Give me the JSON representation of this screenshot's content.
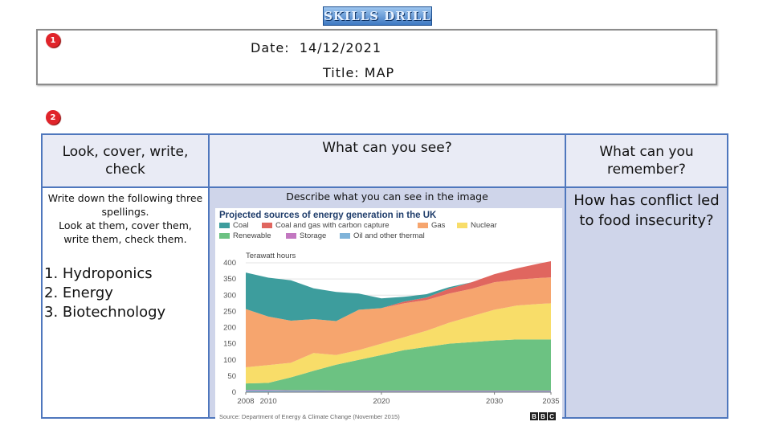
{
  "header": {
    "logo_text": "SKILLS DRILL",
    "badge_1": "1",
    "badge_2": "2",
    "date_label": "Date:",
    "date_value": "14/12/2021",
    "title_label": "Title:",
    "title_value": "MAP"
  },
  "columns": {
    "col1_header": "Look, cover, write, check",
    "col2_header": "What can you see?",
    "col3_header": "What can you remember?"
  },
  "spelling": {
    "instruction_line1": "Write down the following three spellings.",
    "instruction_line2": "Look at them, cover them, write them, check them.",
    "words": [
      "1.  Hydroponics",
      "2.  Energy",
      "3.   Biotechnology"
    ]
  },
  "describe_prompt": "Describe what you can see in the image",
  "question": "How has conflict led to food insecurity?",
  "colors": {
    "border": "#4f77bd",
    "header_bg": "#e9ebf5",
    "body_bg": "#cfd5ea",
    "badge": "#e0242a"
  },
  "chart_data": {
    "type": "area",
    "title": "Projected sources of energy generation in the UK",
    "ylabel": "Terawatt hours",
    "source": "Source: Department of Energy & Climate Change (November 2015)",
    "footer_logo": "BBC",
    "x": [
      2008,
      2010,
      2012,
      2014,
      2016,
      2018,
      2020,
      2022,
      2024,
      2026,
      2028,
      2030,
      2032,
      2034,
      2035
    ],
    "xticks": [
      "2008",
      "2010",
      "2020",
      "2030",
      "2035"
    ],
    "xtick_values": [
      2008,
      2010,
      2020,
      2030,
      2035
    ],
    "yticks": [
      0,
      50,
      100,
      150,
      200,
      250,
      300,
      350,
      400
    ],
    "ylim": [
      0,
      400
    ],
    "legend": [
      "Coal",
      "Coal and gas with carbon capture",
      "Gas",
      "Nuclear",
      "Renewable",
      "Storage",
      "Oil and other thermal"
    ],
    "series": [
      {
        "name": "Oil and other thermal",
        "color": "#7fb3d9",
        "values": [
          5,
          5,
          4,
          4,
          3,
          3,
          3,
          3,
          3,
          3,
          3,
          3,
          3,
          3,
          3
        ]
      },
      {
        "name": "Storage",
        "color": "#c277c0",
        "values": [
          2,
          2,
          2,
          2,
          2,
          2,
          2,
          2,
          2,
          2,
          2,
          2,
          2,
          2,
          2
        ]
      },
      {
        "name": "Renewable",
        "color": "#6cc282",
        "values": [
          20,
          22,
          40,
          60,
          80,
          95,
          110,
          125,
          135,
          145,
          150,
          155,
          158,
          158,
          158
        ]
      },
      {
        "name": "Nuclear",
        "color": "#f8dd69",
        "values": [
          50,
          55,
          45,
          55,
          30,
          30,
          35,
          40,
          50,
          65,
          80,
          95,
          105,
          110,
          112
        ]
      },
      {
        "name": "Gas",
        "color": "#f6a56e",
        "values": [
          180,
          150,
          130,
          105,
          105,
          125,
          110,
          105,
          95,
          90,
          85,
          85,
          80,
          80,
          80
        ]
      },
      {
        "name": "Coal and gas with carbon capture",
        "color": "#e0665f",
        "values": [
          0,
          0,
          0,
          0,
          0,
          0,
          0,
          5,
          8,
          15,
          20,
          25,
          35,
          45,
          50
        ]
      },
      {
        "name": "Coal",
        "color": "#3d9d9d",
        "values": [
          113,
          120,
          125,
          95,
          90,
          50,
          30,
          15,
          10,
          5,
          0,
          0,
          0,
          0,
          0
        ]
      }
    ]
  }
}
